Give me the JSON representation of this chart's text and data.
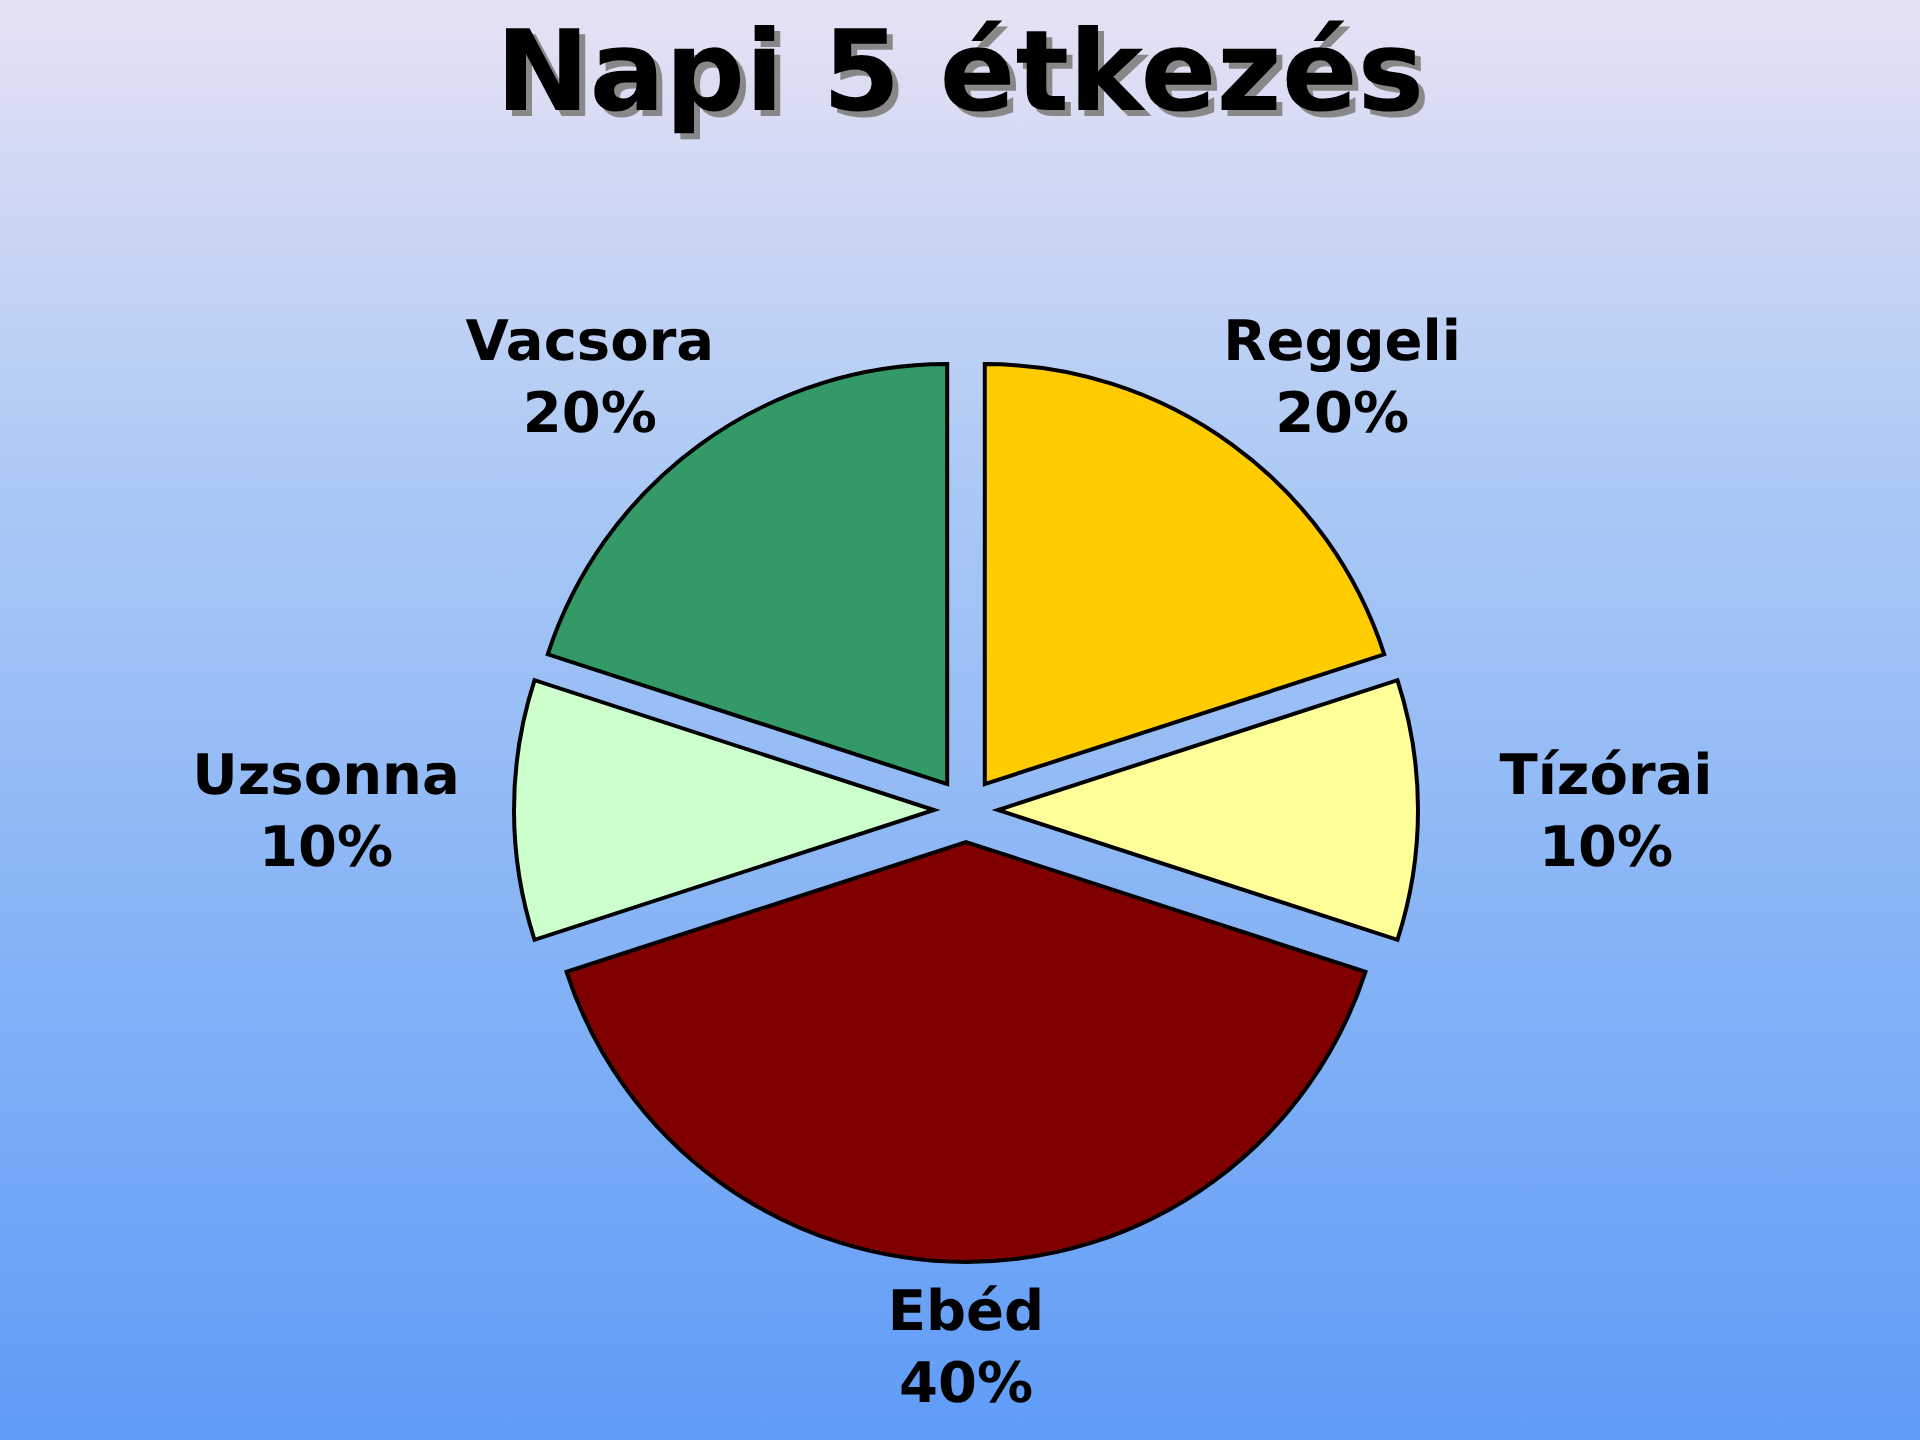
{
  "chart_data": {
    "type": "pie",
    "title": "Napi 5 étkezés",
    "categories": [
      "Reggeli",
      "Tízórai",
      "Ebéd",
      "Uzsonna",
      "Vacsora"
    ],
    "values": [
      20,
      10,
      40,
      10,
      20
    ],
    "colors": [
      "#ffcc00",
      "#ffff99",
      "#800000",
      "#ccffcc",
      "#339966"
    ],
    "value_labels": [
      "20%",
      "10%",
      "40%",
      "10%",
      "20%"
    ]
  }
}
